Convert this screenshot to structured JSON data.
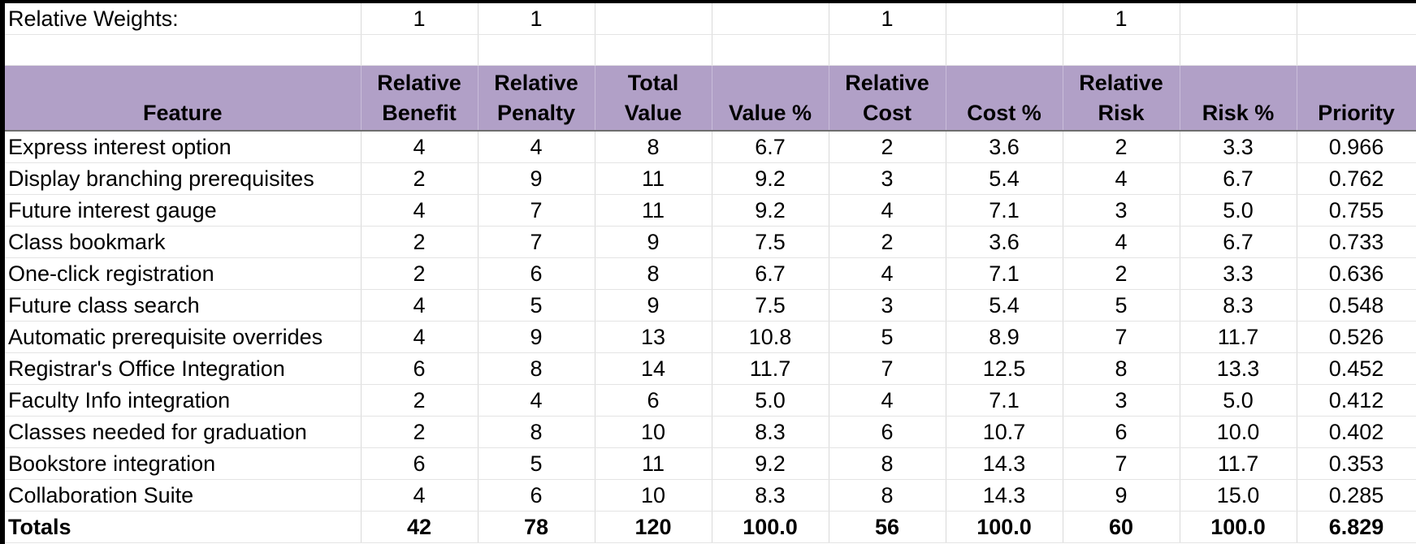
{
  "weights_row": {
    "label": "Relative Weights:",
    "cells": [
      "1",
      "1",
      "",
      "",
      "1",
      "",
      "1",
      "",
      ""
    ]
  },
  "header": {
    "feature": "Feature",
    "columns": [
      [
        "Relative",
        "Benefit"
      ],
      [
        "Relative",
        "Penalty"
      ],
      [
        "Total",
        "Value"
      ],
      [
        "",
        "Value %"
      ],
      [
        "Relative",
        "Cost"
      ],
      [
        "",
        "Cost %"
      ],
      [
        "Relative",
        "Risk"
      ],
      [
        "",
        "Risk %"
      ],
      [
        "",
        "Priority"
      ]
    ]
  },
  "header_color": "#b1a0c7",
  "rows": [
    [
      "Express interest option",
      "4",
      "4",
      "8",
      "6.7",
      "2",
      "3.6",
      "2",
      "3.3",
      "0.966"
    ],
    [
      "Display branching prerequisites",
      "2",
      "9",
      "11",
      "9.2",
      "3",
      "5.4",
      "4",
      "6.7",
      "0.762"
    ],
    [
      "Future interest gauge",
      "4",
      "7",
      "11",
      "9.2",
      "4",
      "7.1",
      "3",
      "5.0",
      "0.755"
    ],
    [
      "Class bookmark",
      "2",
      "7",
      "9",
      "7.5",
      "2",
      "3.6",
      "4",
      "6.7",
      "0.733"
    ],
    [
      "One-click registration",
      "2",
      "6",
      "8",
      "6.7",
      "4",
      "7.1",
      "2",
      "3.3",
      "0.636"
    ],
    [
      "Future class search",
      "4",
      "5",
      "9",
      "7.5",
      "3",
      "5.4",
      "5",
      "8.3",
      "0.548"
    ],
    [
      "Automatic prerequisite overrides",
      "4",
      "9",
      "13",
      "10.8",
      "5",
      "8.9",
      "7",
      "11.7",
      "0.526"
    ],
    [
      "Registrar's Office Integration",
      "6",
      "8",
      "14",
      "11.7",
      "7",
      "12.5",
      "8",
      "13.3",
      "0.452"
    ],
    [
      "Faculty Info integration",
      "2",
      "4",
      "6",
      "5.0",
      "4",
      "7.1",
      "3",
      "5.0",
      "0.412"
    ],
    [
      "Classes needed for graduation",
      "2",
      "8",
      "10",
      "8.3",
      "6",
      "10.7",
      "6",
      "10.0",
      "0.402"
    ],
    [
      "Bookstore integration",
      "6",
      "5",
      "11",
      "9.2",
      "8",
      "14.3",
      "7",
      "11.7",
      "0.353"
    ],
    [
      "Collaboration Suite",
      "4",
      "6",
      "10",
      "8.3",
      "8",
      "14.3",
      "9",
      "15.0",
      "0.285"
    ]
  ],
  "totals": [
    "Totals",
    "42",
    "78",
    "120",
    "100.0",
    "56",
    "100.0",
    "60",
    "100.0",
    "6.829"
  ]
}
